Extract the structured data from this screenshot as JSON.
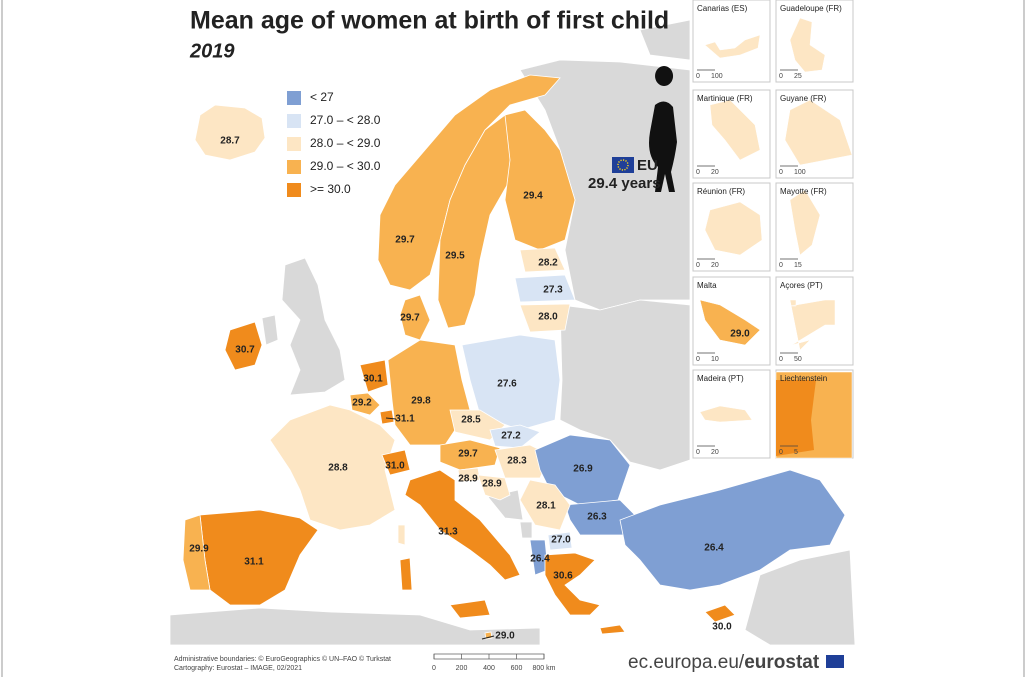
{
  "header": {
    "title": "Mean age of women at birth of first child",
    "subtitle": "2019"
  },
  "legend": [
    {
      "label": "< 27",
      "color": "#7f9fd3"
    },
    {
      "label": "27.0 – < 28.0",
      "color": "#d8e4f4"
    },
    {
      "label": "28.0 – < 29.0",
      "color": "#fde6c4"
    },
    {
      "label": "29.0 – < 30.0",
      "color": "#f8b250"
    },
    {
      "label": ">= 30.0",
      "color": "#f08b1c"
    }
  ],
  "eu": {
    "label": "EU",
    "value": "29.4 years"
  },
  "regions": [
    {
      "label": "28.7",
      "color": "#fde6c4"
    },
    {
      "label": "29.7",
      "color": "#f8b250"
    },
    {
      "label": "29.5",
      "color": "#f8b250"
    },
    {
      "label": "29.4",
      "color": "#f8b250"
    },
    {
      "label": "28.2",
      "color": "#fde6c4"
    },
    {
      "label": "27.3",
      "color": "#d8e4f4"
    },
    {
      "label": "28.0",
      "color": "#fde6c4"
    },
    {
      "label": "29.7",
      "color": "#f8b250"
    },
    {
      "label": "30.7",
      "color": "#f08b1c"
    },
    {
      "label": "30.1",
      "color": "#f08b1c"
    },
    {
      "label": "29.2",
      "color": "#f8b250"
    },
    {
      "label": "31.1",
      "color": "#f08b1c"
    },
    {
      "label": "29.8",
      "color": "#f8b250"
    },
    {
      "label": "27.6",
      "color": "#d8e4f4"
    },
    {
      "label": "28.5",
      "color": "#fde6c4"
    },
    {
      "label": "27.2",
      "color": "#d8e4f4"
    },
    {
      "label": "29.7",
      "color": "#f8b250"
    },
    {
      "label": "28.3",
      "color": "#fde6c4"
    },
    {
      "label": "26.9",
      "color": "#7f9fd3"
    },
    {
      "label": "26.3",
      "color": "#7f9fd3"
    },
    {
      "label": "28.8",
      "color": "#fde6c4"
    },
    {
      "label": "31.0",
      "color": "#f08b1c"
    },
    {
      "label": "31.3",
      "color": "#f08b1c"
    },
    {
      "label": "28.9",
      "color": "#fde6c4"
    },
    {
      "label": "28.9",
      "color": "#fde6c4"
    },
    {
      "label": "28.1",
      "color": "#fde6c4"
    },
    {
      "label": "27.0",
      "color": "#d8e4f4"
    },
    {
      "label": "26.4",
      "color": "#7f9fd3"
    },
    {
      "label": "30.6",
      "color": "#f08b1c"
    },
    {
      "label": "26.4",
      "color": "#7f9fd3"
    },
    {
      "label": "31.1",
      "color": "#f08b1c"
    },
    {
      "label": "29.9",
      "color": "#f8b250"
    },
    {
      "label": "29.0",
      "color": "#f8b250"
    },
    {
      "label": "30.0",
      "color": "#f08b1c"
    }
  ],
  "insets": [
    {
      "title": "Canarias (ES)",
      "scale": [
        "0",
        "100"
      ]
    },
    {
      "title": "Guadeloupe (FR)",
      "scale": [
        "0",
        "25"
      ]
    },
    {
      "title": "Martinique (FR)",
      "scale": [
        "0",
        "20"
      ]
    },
    {
      "title": "Guyane (FR)",
      "scale": [
        "0",
        "100"
      ]
    },
    {
      "title": "Réunion (FR)",
      "scale": [
        "0",
        "20"
      ]
    },
    {
      "title": "Mayotte (FR)",
      "scale": [
        "0",
        "15"
      ]
    },
    {
      "title": "Malta",
      "scale": [
        "0",
        "10"
      ],
      "value": "29.0"
    },
    {
      "title": "Açores (PT)",
      "scale": [
        "0",
        "50"
      ]
    },
    {
      "title": "Madeira (PT)",
      "scale": [
        "0",
        "20"
      ]
    },
    {
      "title": "Liechtenstein",
      "scale": [
        "0",
        "5"
      ]
    }
  ],
  "footer": {
    "credits": [
      "Administrative boundaries: © EuroGeographics © UN–FAO © Turkstat",
      "Cartography: Eurostat – IMAGE, 02/2021"
    ],
    "scale": [
      "0",
      "200",
      "400",
      "600",
      "800 km"
    ],
    "site": "ec.europa.eu/",
    "brand": "eurostat"
  }
}
